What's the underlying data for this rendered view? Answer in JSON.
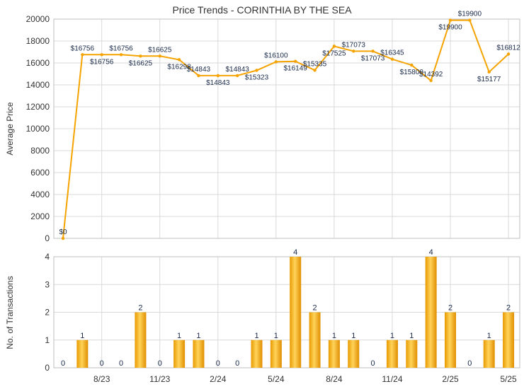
{
  "chart_data": [
    {
      "type": "line",
      "title": "Price Trends - CORINTHIA BY THE SEA",
      "ylabel": "Average Price",
      "ylim": [
        0,
        20000
      ],
      "yticks": [
        "0",
        "2000",
        "4000",
        "6000",
        "8000",
        "10000",
        "12000",
        "14000",
        "16000",
        "18000",
        "20000"
      ],
      "grid": true,
      "color": "#f5a300",
      "values": [
        0,
        16756,
        16756,
        16756,
        16625,
        16625,
        16298,
        14843,
        14843,
        14843,
        15323,
        16100,
        16149,
        15335,
        17525,
        17073,
        17073,
        16345,
        15800,
        14392,
        19900,
        19900,
        15177,
        16812
      ],
      "labels": [
        "$0",
        "$16756",
        "$16756",
        "$16756",
        "$16625",
        "$16625",
        "$16298",
        "$14843",
        "$14843",
        "$14843",
        "$15323",
        "$16100",
        "$16149",
        "$15335",
        "$17525",
        "$17073",
        "$17073",
        "$16345",
        "$15800",
        "$14392",
        "$19900",
        "$19900",
        "$15177",
        "$16812"
      ]
    },
    {
      "type": "bar",
      "ylabel": "No. of Transactions",
      "ylim": [
        0,
        4
      ],
      "yticks": [
        "0",
        "1",
        "2",
        "3",
        "4"
      ],
      "grid": true,
      "color": "#f5a300",
      "values": [
        0,
        1,
        0,
        0,
        2,
        0,
        1,
        1,
        0,
        0,
        1,
        1,
        4,
        2,
        1,
        1,
        0,
        1,
        1,
        4,
        2,
        0,
        1,
        2
      ],
      "labels": [
        "0",
        "1",
        "0",
        "0",
        "2",
        "0",
        "1",
        "1",
        "0",
        "0",
        "1",
        "1",
        "4",
        "2",
        "1",
        "1",
        "0",
        "1",
        "1",
        "4",
        "2",
        "0",
        "1",
        "2"
      ],
      "xticks": [
        "8/23",
        "11/23",
        "2/24",
        "5/24",
        "8/24",
        "11/24",
        "2/25",
        "5/25"
      ]
    }
  ]
}
